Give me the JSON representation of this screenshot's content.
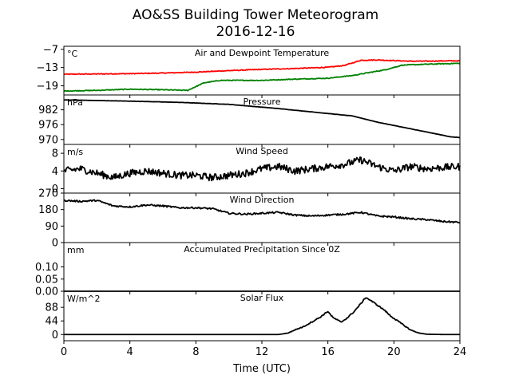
{
  "chart_data": {
    "type": "line",
    "title": "AO&SS Building Tower Meteorogram",
    "subtitle": "2016-12-16",
    "xlabel": "Time (UTC)",
    "x_ticks": [
      "0",
      "4",
      "8",
      "12",
      "16",
      "20",
      "24"
    ],
    "xlim": [
      0,
      24
    ],
    "panels": [
      {
        "key": "temp",
        "title": "Air and Dewpoint Temperature",
        "unit": "°C",
        "ylim": [
          -22,
          -6
        ],
        "yticks": [
          -7,
          -13,
          -19
        ],
        "ytick_labels": [
          "−7",
          "−13",
          "−19"
        ],
        "series": [
          {
            "color": "#ff0000",
            "x": [
              0,
              2,
              4,
              6,
              8,
              10,
              12,
              14,
              16,
              17,
              18,
              19,
              20,
              21,
              22,
              23,
              24
            ],
            "y": [
              -15.2,
              -15.1,
              -15.0,
              -14.8,
              -14.5,
              -14.0,
              -13.6,
              -13.3,
              -12.9,
              -12.3,
              -10.6,
              -10.5,
              -10.7,
              -10.9,
              -10.9,
              -10.8,
              -10.8
            ]
          },
          {
            "color": "#008000",
            "x": [
              0,
              2,
              4,
              6,
              7.5,
              8.5,
              9.5,
              12,
              14,
              16,
              17.5,
              19.5,
              20.5,
              22,
              24
            ],
            "y": [
              -20.7,
              -20.5,
              -20.1,
              -20.3,
              -20.5,
              -18.0,
              -17.2,
              -17.2,
              -16.8,
              -16.5,
              -15.6,
              -13.7,
              -12.2,
              -11.9,
              -11.6
            ]
          }
        ]
      },
      {
        "key": "pressure",
        "title": "Pressure",
        "unit": "hPa",
        "ylim": [
          968,
          988
        ],
        "yticks": [
          982,
          976,
          970
        ],
        "ytick_labels": [
          "982",
          "976",
          "970"
        ],
        "series": [
          {
            "color": "#000000",
            "x": [
              0,
              4,
              7,
              10,
              13,
              16,
              17.5,
              19,
              20.5,
              22,
              23.5,
              24
            ],
            "y": [
              986.0,
              985.5,
              985.0,
              984.2,
              982.5,
              980.5,
              979.5,
              977.0,
              975.0,
              973.0,
              971.0,
              970.8
            ]
          }
        ]
      },
      {
        "key": "wind_speed",
        "title": "Wind Speed",
        "unit": "m/s",
        "ylim": [
          -1,
          10
        ],
        "yticks": [
          8,
          4,
          0
        ],
        "ytick_labels": [
          "8",
          "4",
          "0"
        ],
        "series": [
          {
            "color": "#000000",
            "x": [
              0,
              1,
              2,
              3,
              4,
              5,
              6,
              7,
              8,
              9,
              10,
              11,
              12,
              13,
              14,
              15,
              16,
              17,
              18,
              19,
              20,
              21,
              22,
              23,
              24
            ],
            "y": [
              4.0,
              4.5,
              3.5,
              2.5,
              3.5,
              4.0,
              3.5,
              3.0,
              3.0,
              2.5,
              3.0,
              3.5,
              4.5,
              5.0,
              4.0,
              4.5,
              5.0,
              5.5,
              6.5,
              5.0,
              4.0,
              5.0,
              4.5,
              4.8,
              5.0
            ]
          }
        ]
      },
      {
        "key": "wind_dir",
        "title": "Wind Direction",
        "unit": "",
        "ylim": [
          0,
          270
        ],
        "yticks": [
          270,
          180,
          90,
          0
        ],
        "ytick_labels": [
          "270",
          "180",
          "90",
          "0"
        ],
        "series": [
          {
            "color": "#000000",
            "x": [
              0,
              1,
              2,
              3,
              4,
              5,
              6,
              7,
              8,
              9,
              10,
              11,
              12,
              13,
              14,
              15,
              16,
              17,
              18,
              19,
              20,
              21,
              22,
              23,
              24
            ],
            "y": [
              230,
              225,
              230,
              200,
              195,
              205,
              200,
              190,
              190,
              185,
              160,
              155,
              160,
              165,
              150,
              145,
              150,
              155,
              165,
              145,
              140,
              130,
              125,
              115,
              110
            ]
          }
        ]
      },
      {
        "key": "precip",
        "title": "Accumulated Precipitation Since 0Z",
        "unit": "mm",
        "ylim": [
          0,
          0.2
        ],
        "yticks": [
          0.1,
          0.05,
          0.0
        ],
        "ytick_labels": [
          "0.10",
          "0.05",
          "0.00"
        ],
        "series": [
          {
            "color": "#000000",
            "x": [
              0,
              24
            ],
            "y": [
              0,
              0
            ]
          }
        ]
      },
      {
        "key": "solar",
        "title": "Solar Flux",
        "unit": "W/m^2",
        "ylim": [
          -20,
          140
        ],
        "yticks": [
          88,
          44,
          0
        ],
        "ytick_labels": [
          "88",
          "44",
          "0"
        ],
        "series": [
          {
            "color": "#000000",
            "x": [
              0,
              13,
              13.6,
              14,
              14.5,
              15,
              15.5,
              16,
              16.3,
              16.8,
              17.2,
              17.6,
              18,
              18.3,
              18.6,
              19,
              19.4,
              19.8,
              20.2,
              20.6,
              21,
              21.5,
              22,
              23,
              24
            ],
            "y": [
              0,
              0,
              5,
              15,
              25,
              40,
              55,
              75,
              55,
              40,
              55,
              75,
              100,
              120,
              110,
              95,
              80,
              60,
              45,
              30,
              15,
              5,
              1,
              0,
              0
            ]
          }
        ]
      }
    ]
  }
}
